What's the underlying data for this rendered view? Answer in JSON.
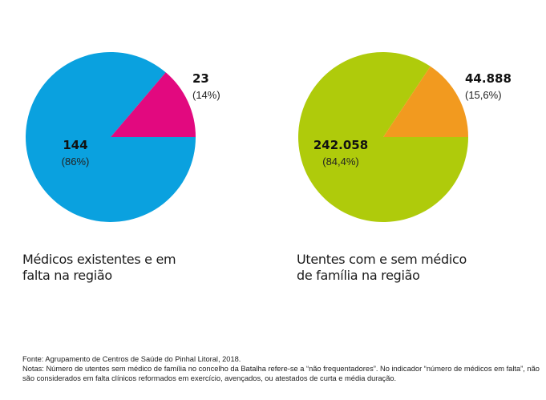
{
  "chart_data": [
    {
      "type": "pie",
      "title": "Médicos existentes e em falta na região",
      "slices": [
        {
          "label": "144",
          "value": 144,
          "percent_label": "(86%)",
          "color": "#0aa1df"
        },
        {
          "label": "23",
          "value": 23,
          "percent_label": "(14%)",
          "color": "#e2097f"
        }
      ]
    },
    {
      "type": "pie",
      "title": "Utentes com e sem médico de família na região",
      "slices": [
        {
          "label": "242.058",
          "value": 242058,
          "percent_label": "(84,4%)",
          "color": "#afcb0b"
        },
        {
          "label": "44.888",
          "value": 44888,
          "percent_label": "(15,6%)",
          "color": "#f29a1f"
        }
      ]
    }
  ],
  "captions": {
    "chart1_line1": "Médicos existentes e em",
    "chart1_line2": "falta na região",
    "chart2_line1": "Utentes com e sem médico",
    "chart2_line2": "de família na região"
  },
  "footer": {
    "source": "Fonte: Agrupamento de Centros de Saúde do Pinhal Litoral, 2018.",
    "notes": "Notas: Número de utentes sem médico de família no concelho da Batalha refere-se a “não frequentadores”. No indicador “número de médicos em falta”, não são considerados em falta clínicos reformados em exercício, avençados, ou atestados de curta e média duração."
  }
}
